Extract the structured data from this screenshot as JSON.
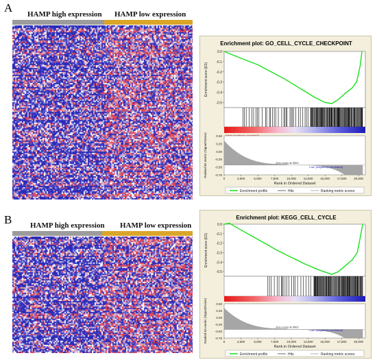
{
  "panels": [
    {
      "letter": "A",
      "groups": [
        {
          "label": "HAMP high expression",
          "color": "#9c9c9c"
        },
        {
          "label": "HAMP low expression",
          "color": "#d9a62a"
        }
      ],
      "enrichment": {
        "title": "Enrichment plot: GO_CELL_CYCLE_CHECKPOINT",
        "ylabel_top": "Enrichment score (ES)",
        "ylabel_bottom": "Ranked list metric (Signal2Noise)",
        "xlabel": "Rank in Ordered Dataset",
        "zero_cross": "Zero cross at 9502",
        "high_label": "'High' (positively correlated)",
        "low_label": "'Low' (negatively correlated)",
        "legend": [
          "Enrichment profile",
          "Hits",
          "Ranking metric scores"
        ]
      }
    },
    {
      "letter": "B",
      "groups": [
        {
          "label": "HAMP high expression",
          "color": "#9c9c9c"
        },
        {
          "label": "HAMP low expression",
          "color": "#d9a62a"
        }
      ],
      "enrichment": {
        "title": "Enrichment plot: KEGG_CELL_CYCLE",
        "ylabel_top": "Enrichment score (ES)",
        "ylabel_bottom": "Ranked list metric (Signal2Noise)",
        "xlabel": "Rank in Ordered Dataset",
        "zero_cross": "Zero cross at 9502",
        "high_label": "'High' (positively correlated)",
        "low_label": "'Low' (negatively correlated)",
        "legend": [
          "Enrichment profile",
          "Hits",
          "Ranking metric scores"
        ]
      }
    }
  ],
  "chart_data": [
    {
      "type": "line",
      "title": "Enrichment plot: GO_CELL_CYCLE_CHECKPOINT",
      "xlabel": "Rank in Ordered Dataset",
      "ylabel": "Enrichment score (ES)",
      "xlim": [
        0,
        21000
      ],
      "ylim": [
        -0.55,
        0.0
      ],
      "x_ticks": [
        0,
        2500,
        5000,
        7500,
        10000,
        12500,
        15000,
        17500,
        20000
      ],
      "x_tick_labels": [
        "0",
        "2,500",
        "5,000",
        "7,500",
        "10,000",
        "12,500",
        "15,000",
        "17,500",
        "20,000"
      ],
      "es_ticks": [
        0.0,
        -0.1,
        -0.2,
        -0.3,
        -0.4,
        -0.5
      ],
      "es_tick_labels": [
        "0.0",
        "-0.1",
        "-0.2",
        "-0.3",
        "-0.4",
        "-0.5"
      ],
      "series": [
        {
          "name": "Enrichment profile",
          "x": [
            0,
            1500,
            3000,
            5000,
            7000,
            9000,
            10500,
            12000,
            13500,
            15000,
            16000,
            17000,
            18000,
            19000,
            19700,
            20200,
            20500
          ],
          "values": [
            0.0,
            -0.04,
            -0.08,
            -0.13,
            -0.2,
            -0.27,
            -0.33,
            -0.39,
            -0.45,
            -0.5,
            -0.51,
            -0.47,
            -0.41,
            -0.36,
            -0.3,
            -0.15,
            0.0
          ]
        }
      ],
      "hits_start": 2800,
      "dense_hits_start": 12500,
      "metric_ylim": [
        -0.25,
        0.75
      ],
      "metric_ticks": [
        0.5,
        0.25,
        0.0,
        -0.25,
        -0.5,
        -0.75
      ],
      "metric_tick_labels": [
        "0.50",
        "0.25",
        "0.00",
        "-0.25",
        "-0.50",
        "-0.75"
      ],
      "zero_cross": 9502
    },
    {
      "type": "line",
      "title": "Enrichment plot: KEGG_CELL_CYCLE",
      "xlabel": "Rank in Ordered Dataset",
      "ylabel": "Enrichment score (ES)",
      "xlim": [
        0,
        21000
      ],
      "ylim": [
        -0.55,
        0.0
      ],
      "x_ticks": [
        0,
        2500,
        5000,
        7500,
        10000,
        12500,
        15000,
        17500,
        20000
      ],
      "x_tick_labels": [
        "0",
        "2,500",
        "5,000",
        "7,500",
        "10,000",
        "12,500",
        "15,000",
        "17,500",
        "20,000"
      ],
      "es_ticks": [
        0.0,
        -0.1,
        -0.2,
        -0.3,
        -0.4,
        -0.5
      ],
      "es_tick_labels": [
        "0.0",
        "-0.1",
        "-0.2",
        "-0.3",
        "-0.4",
        "-0.5"
      ],
      "series": [
        {
          "name": "Enrichment profile",
          "x": [
            0,
            800,
            1500,
            2500,
            4000,
            6000,
            8000,
            10000,
            12000,
            14000,
            16000,
            17000,
            18000,
            19000,
            19800,
            20300,
            20600
          ],
          "values": [
            0.0,
            0.01,
            -0.02,
            -0.06,
            -0.12,
            -0.2,
            -0.28,
            -0.35,
            -0.42,
            -0.48,
            -0.53,
            -0.5,
            -0.44,
            -0.38,
            -0.3,
            -0.12,
            0.0
          ]
        }
      ],
      "hits_start": 6500,
      "dense_hits_start": 13000,
      "metric_ylim": [
        -0.25,
        0.75
      ],
      "metric_ticks": [
        0.5,
        0.25,
        0.0,
        -0.25,
        -0.5,
        -0.75
      ],
      "metric_tick_labels": [
        "0.50",
        "0.25",
        "0.00",
        "-0.25",
        "-0.50",
        "-0.75"
      ],
      "zero_cross": 9502
    }
  ]
}
